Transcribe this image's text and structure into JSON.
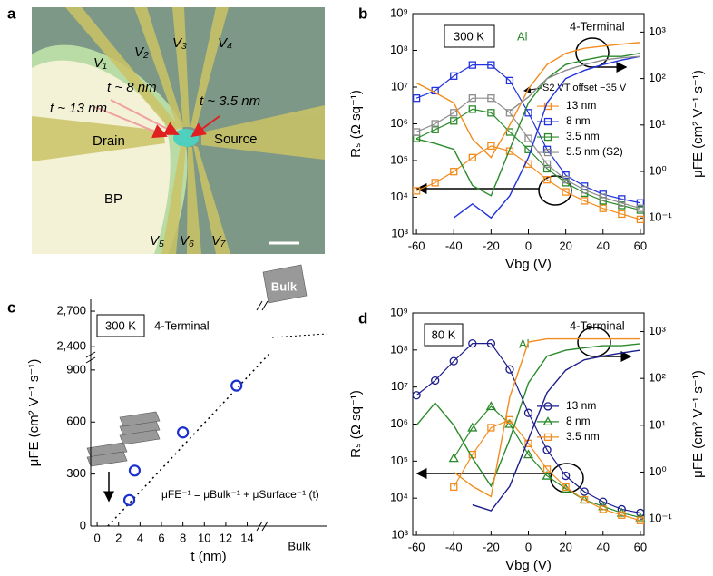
{
  "micrograph": {
    "panel_label": "a",
    "labels": [
      "V₁",
      "V₂",
      "V₃",
      "V₄",
      "t ~ 8 nm",
      "t ~ 13 nm",
      "t ~ 3.5 nm",
      "Drain",
      "Source",
      "BP",
      "V₅",
      "V₆",
      "V₇"
    ]
  },
  "chart_data": [
    {
      "type": "line",
      "panel_label": "b",
      "x_label": "Vbg (V)",
      "y_label": "Rₛ (Ω sq⁻¹)",
      "y2_label": "μFE (cm² V⁻¹ s⁻¹)",
      "annotations": [
        "300 K",
        "Al",
        "4-Terminal",
        "S2 VT offset −35 V"
      ],
      "yscale": "log",
      "legend": "right",
      "xlim": [
        -62,
        62
      ],
      "xticks": [
        -60,
        -40,
        -20,
        0,
        20,
        40,
        60
      ],
      "ylim": [
        1000,
        1000000000
      ],
      "yticks": [
        {
          "value": 1000,
          "label": "10³"
        },
        {
          "value": 10000,
          "label": "10⁴"
        },
        {
          "value": 100000,
          "label": "10⁵"
        },
        {
          "value": 1000000,
          "label": "10⁶"
        },
        {
          "value": 10000000,
          "label": "10⁷"
        },
        {
          "value": 100000000,
          "label": "10⁸"
        },
        {
          "value": 1000000000,
          "label": "10⁹"
        }
      ],
      "y2lim": [
        0.045,
        2500
      ],
      "y2ticks": [
        {
          "value": 0.1,
          "label": "10⁻¹"
        },
        {
          "value": 1,
          "label": "10⁰"
        },
        {
          "value": 10,
          "label": "10¹"
        },
        {
          "value": 100,
          "label": "10²"
        },
        {
          "value": 1000,
          "label": "10³"
        }
      ],
      "x": [
        -60,
        -50,
        -40,
        -30,
        -20,
        -10,
        0,
        10,
        20,
        30,
        40,
        50,
        60
      ],
      "series": [
        {
          "name": "13 nm",
          "color": "#f28c1e",
          "marker": "square",
          "values": [
            15000,
            25000,
            50000,
            120000,
            250000,
            180000,
            80000,
            30000,
            14000,
            8000,
            5000,
            3500,
            2500
          ]
        },
        {
          "name": "8 nm",
          "color": "#2233dd",
          "marker": "square",
          "values": [
            5000000,
            8000000,
            20000000,
            40000000,
            40000000,
            15000000,
            2000000,
            200000,
            40000,
            20000,
            12000,
            9000,
            7000
          ]
        },
        {
          "name": "3.5 nm",
          "color": "#2a8a2a",
          "marker": "square",
          "values": [
            400000,
            700000,
            1200000,
            2500000,
            2000000,
            600000,
            200000,
            60000,
            25000,
            13000,
            8000,
            6000,
            4500
          ]
        },
        {
          "name": "5.5 nm (S2)",
          "color": "#8c8c8c",
          "marker": "square",
          "values": [
            600000,
            1000000,
            2000000,
            5000000,
            5000000,
            2000000,
            400000,
            80000,
            30000,
            16000,
            10000,
            7000,
            5000
          ]
        },
        {
          "name": "13 nm",
          "color": "#f28c1e",
          "axis": "y2",
          "values": [
            80,
            50,
            30,
            5,
            2,
            10,
            60,
            200,
            350,
            450,
            500,
            550,
            600
          ]
        },
        {
          "name": "8 nm",
          "color": "#2233dd",
          "axis": "y2",
          "values": [
            null,
            null,
            0.1,
            0.2,
            0.1,
            0.3,
            2,
            30,
            100,
            150,
            200,
            250,
            300
          ]
        },
        {
          "name": "3.5 nm",
          "color": "#2a8a2a",
          "axis": "y2",
          "values": [
            5,
            4,
            3,
            0.5,
            0.3,
            3,
            30,
            100,
            200,
            250,
            300,
            300,
            350
          ]
        },
        {
          "name": "5.5 nm (S2)",
          "color": "#8c8c8c",
          "axis": "y2",
          "values": [
            null,
            null,
            null,
            null,
            null,
            20,
            40,
            100,
            150,
            200,
            250,
            280,
            300
          ]
        }
      ]
    },
    {
      "type": "scatter",
      "panel_label": "c",
      "x_label": "t (nm)",
      "y_label": "μFE (cm² V⁻¹ s⁻¹)",
      "annotations": [
        "300 K",
        "4-Terminal",
        "μFE⁻¹ = μBulk⁻¹ + μSurface⁻¹ (t)",
        "Bulk"
      ],
      "x_break_label": "Bulk",
      "xlim": [
        -0.6,
        21.4
      ],
      "xticks": [
        0,
        2,
        4,
        6,
        8,
        10,
        12,
        14
      ],
      "ylim": [
        0,
        2800
      ],
      "ybreak": [
        1000,
        2350
      ],
      "yticks": [
        0,
        300,
        600,
        900,
        {
          "value": 2400,
          "label": "2,400"
        },
        {
          "value": 2700,
          "label": "2,700"
        }
      ],
      "color": "#1a2fd0",
      "x": [
        3,
        3.5,
        8,
        13
      ],
      "values": [
        150,
        320,
        540,
        810
      ],
      "fit": {
        "x": [
          1,
          16
        ],
        "values": [
          0,
          990
        ]
      }
    },
    {
      "type": "line",
      "panel_label": "d",
      "x_label": "Vbg (V)",
      "y_label": "Rₛ (Ω sq⁻¹)",
      "y2_label": "μFE (cm² V⁻¹ s⁻¹)",
      "annotations": [
        "80 K",
        "Al",
        "4-Terminal"
      ],
      "yscale": "log",
      "legend": "right",
      "xlim": [
        -62,
        62
      ],
      "xticks": [
        -60,
        -40,
        -20,
        0,
        20,
        40,
        60
      ],
      "ylim": [
        1000,
        1000000000
      ],
      "yticks": [
        {
          "value": 1000,
          "label": "10³"
        },
        {
          "value": 10000,
          "label": "10⁴"
        },
        {
          "value": 100000,
          "label": "10⁵"
        },
        {
          "value": 1000000,
          "label": "10⁶"
        },
        {
          "value": 10000000,
          "label": "10⁷"
        },
        {
          "value": 100000000,
          "label": "10⁸"
        },
        {
          "value": 1000000000,
          "label": "10⁹"
        }
      ],
      "y2lim": [
        0.045,
        2500
      ],
      "y2ticks": [
        {
          "value": 0.1,
          "label": "10⁻¹"
        },
        {
          "value": 1,
          "label": "10⁰"
        },
        {
          "value": 10,
          "label": "10¹"
        },
        {
          "value": 100,
          "label": "10²"
        },
        {
          "value": 1000,
          "label": "10³"
        }
      ],
      "x": [
        -60,
        -50,
        -40,
        -30,
        -20,
        -10,
        0,
        10,
        20,
        30,
        40,
        50,
        60
      ],
      "series": [
        {
          "name": "13 nm",
          "color": "#1c1c8c",
          "marker": "circle",
          "values": [
            6000000,
            15000000,
            50000000,
            150000000,
            150000000,
            30000000,
            2000000,
            200000,
            40000,
            15000,
            8000,
            5000,
            4000
          ]
        },
        {
          "name": "8 nm",
          "color": "#2a8a2a",
          "marker": "triangle",
          "values": [
            null,
            null,
            120000,
            800000,
            3000000,
            1000000,
            150000,
            40000,
            18000,
            9000,
            6000,
            4000,
            3000
          ]
        },
        {
          "name": "3.5 nm",
          "color": "#f28c1e",
          "marker": "square",
          "values": [
            null,
            null,
            20000,
            150000,
            800000,
            1300000,
            300000,
            60000,
            20000,
            9000,
            5000,
            3500,
            2500
          ]
        },
        {
          "name": "13 nm",
          "color": "#1c1c8c",
          "axis": "y2",
          "values": [
            null,
            null,
            null,
            0.2,
            0.15,
            0.5,
            5,
            50,
            150,
            250,
            300,
            350,
            400
          ]
        },
        {
          "name": "8 nm",
          "color": "#2a8a2a",
          "axis": "y2",
          "values": [
            10,
            30,
            10,
            2,
            0.5,
            5,
            80,
            300,
            400,
            450,
            500,
            500,
            550
          ]
        },
        {
          "name": "3.5 nm",
          "color": "#f28c1e",
          "axis": "y2",
          "values": [
            null,
            null,
            1,
            0.5,
            0.3,
            40,
            600,
            700,
            700,
            700,
            700,
            700,
            700
          ]
        }
      ]
    }
  ]
}
